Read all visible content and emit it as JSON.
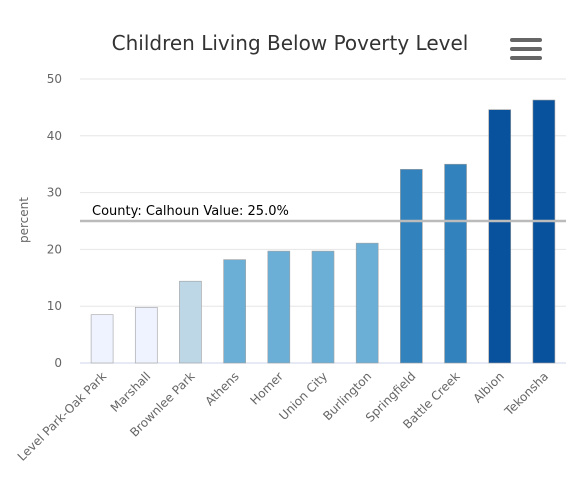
{
  "chart_data": {
    "type": "bar",
    "title": "Children Living Below Poverty Level",
    "ylabel": "percent",
    "xlabel": "",
    "ylim": [
      0,
      50
    ],
    "yticks": [
      0,
      10,
      20,
      30,
      40,
      50
    ],
    "grid": true,
    "categories": [
      "Level Park-Oak Park",
      "Marshall",
      "Brownlee Park",
      "Athens",
      "Homer",
      "Union City",
      "Burlington",
      "Springfield",
      "Battle Creek",
      "Albion",
      "Tekonsha"
    ],
    "values": [
      8.5,
      9.8,
      14.4,
      18.2,
      19.7,
      19.7,
      21.1,
      34.1,
      35.0,
      44.6,
      46.3
    ],
    "colors": [
      "#eff3ff",
      "#eff3ff",
      "#bdd7e7",
      "#6baed6",
      "#6baed6",
      "#6baed6",
      "#6baed6",
      "#3182bd",
      "#3182bd",
      "#08519c",
      "#08519c"
    ],
    "reference_line": {
      "value": 25.0,
      "label": "County: Calhoun Value: 25.0%",
      "color": "#bbbbbb"
    }
  },
  "menu": {
    "icon": "hamburger-menu-icon"
  }
}
